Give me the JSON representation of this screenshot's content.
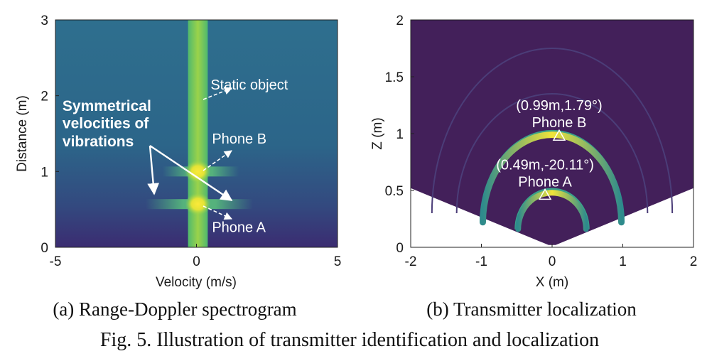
{
  "figure_caption": "Fig. 5.  Illustration of transmitter identification and localization",
  "chart_data": [
    {
      "type": "heatmap",
      "caption": "(a) Range-Doppler spectrogram",
      "xlabel": "Velocity (m/s)",
      "ylabel": "Distance (m)",
      "xlim": [
        -5,
        5
      ],
      "ylim": [
        0,
        3
      ],
      "xticks": [
        "-5",
        "0",
        "5"
      ],
      "yticks": [
        "0",
        "1",
        "2",
        "3"
      ],
      "grid": false,
      "colormap": "viridis",
      "bright_band": {
        "velocity_from": -0.3,
        "velocity_to": 0.4
      },
      "peaks": [
        {
          "velocity": 0.05,
          "distance": 1.0
        },
        {
          "velocity": 0.05,
          "distance": 0.57
        }
      ],
      "sidebands": [
        {
          "distance": 1.0,
          "velocity_from": -1.2,
          "velocity_to": 1.5
        },
        {
          "distance": 0.57,
          "velocity_from": -1.8,
          "velocity_to": 2.0
        }
      ],
      "annotations": [
        {
          "text": "Static object",
          "velocity": 0.5,
          "distance": 2.08
        },
        {
          "text": "Phone B",
          "velocity": 0.55,
          "distance": 1.37
        },
        {
          "text": "Phone A",
          "velocity": 0.55,
          "distance": 0.2
        },
        {
          "text": "Symmetrical",
          "velocity": -4.75,
          "distance": 1.8
        },
        {
          "text": "velocities of",
          "velocity": -4.75,
          "distance": 1.57
        },
        {
          "text": "vibrations",
          "velocity": -4.75,
          "distance": 1.33
        }
      ]
    },
    {
      "type": "heatmap",
      "caption": "(b) Transmitter localization",
      "xlabel": "X (m)",
      "ylabel": "Z (m)",
      "xlim": [
        -2,
        2
      ],
      "ylim": [
        0,
        2
      ],
      "xticks": [
        "-2",
        "-1",
        "0",
        "1",
        "2"
      ],
      "yticks": [
        "0",
        "0.5",
        "1",
        "1.5",
        "2"
      ],
      "grid": false,
      "colormap": "viridis",
      "points": [
        {
          "label": "Phone B",
          "coords": "(0.99m,1.79°)",
          "x": 0.1,
          "z": 0.98
        },
        {
          "label": "Phone A",
          "coords": "(0.49m,-20.11°)",
          "x": -0.1,
          "z": 0.46
        }
      ]
    }
  ],
  "colors": {
    "background_dark": "#43205a",
    "field_a": "#2e6a8e",
    "band_a": "#8ccb4a",
    "peak": "#f3e53a"
  }
}
